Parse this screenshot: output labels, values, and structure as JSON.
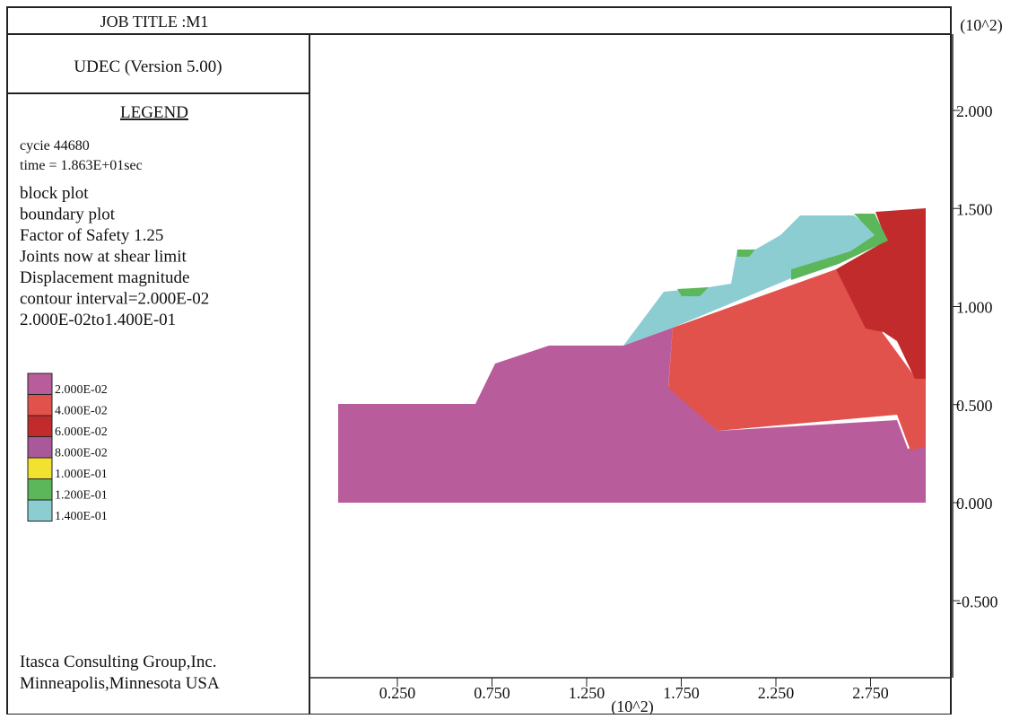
{
  "header": {
    "job_title": "JOB TITLE :M1",
    "program": "UDEC (Version 5.00)"
  },
  "legend": {
    "title": "LEGEND",
    "lines": [
      "cycie  44680",
      "time = 1.863E+01sec",
      "block plot",
      "boundary plot",
      "Factor of Safety 1.25",
      "Joints now at shear limit",
      "Displacement magnitude",
      "contour interval=2.000E-02",
      "2.000E-02to1.400E-01"
    ],
    "items": [
      {
        "label": "2.000E-02",
        "color": "#b95c9b"
      },
      {
        "label": "4.000E-02",
        "color": "#e2524c"
      },
      {
        "label": "6.000E-02",
        "color": "#c22b2b"
      },
      {
        "label": "8.000E-02",
        "color": "#a9589a"
      },
      {
        "label": "1.000E-01",
        "color": "#f3e12f"
      },
      {
        "label": "1.200E-01",
        "color": "#5cb65a"
      },
      {
        "label": "1.400E-01",
        "color": "#8ccdd1"
      }
    ]
  },
  "footer": [
    "Itasca Consulting Group,Inc.",
    "Minneapolis,Minnesota USA"
  ],
  "x_axis": {
    "unit": "(10^2)",
    "ticks": [
      {
        "value": 0.25,
        "label": "0.250"
      },
      {
        "value": 0.75,
        "label": "0.750"
      },
      {
        "value": 1.25,
        "label": "1.250"
      },
      {
        "value": 1.75,
        "label": "1.750"
      },
      {
        "value": 2.25,
        "label": "2.250"
      },
      {
        "value": 2.75,
        "label": "2.750"
      }
    ]
  },
  "y_axis": {
    "unit": "(10^2)",
    "ticks": [
      {
        "value": 2,
        "label": "2.000"
      },
      {
        "value": 1.5,
        "label": "1.500"
      },
      {
        "value": 1,
        "label": "1.000"
      },
      {
        "value": 0.5,
        "label": "0.500"
      },
      {
        "value": 0,
        "label": "0.000"
      },
      {
        "value": -0.5,
        "label": "-0.500"
      }
    ]
  }
}
